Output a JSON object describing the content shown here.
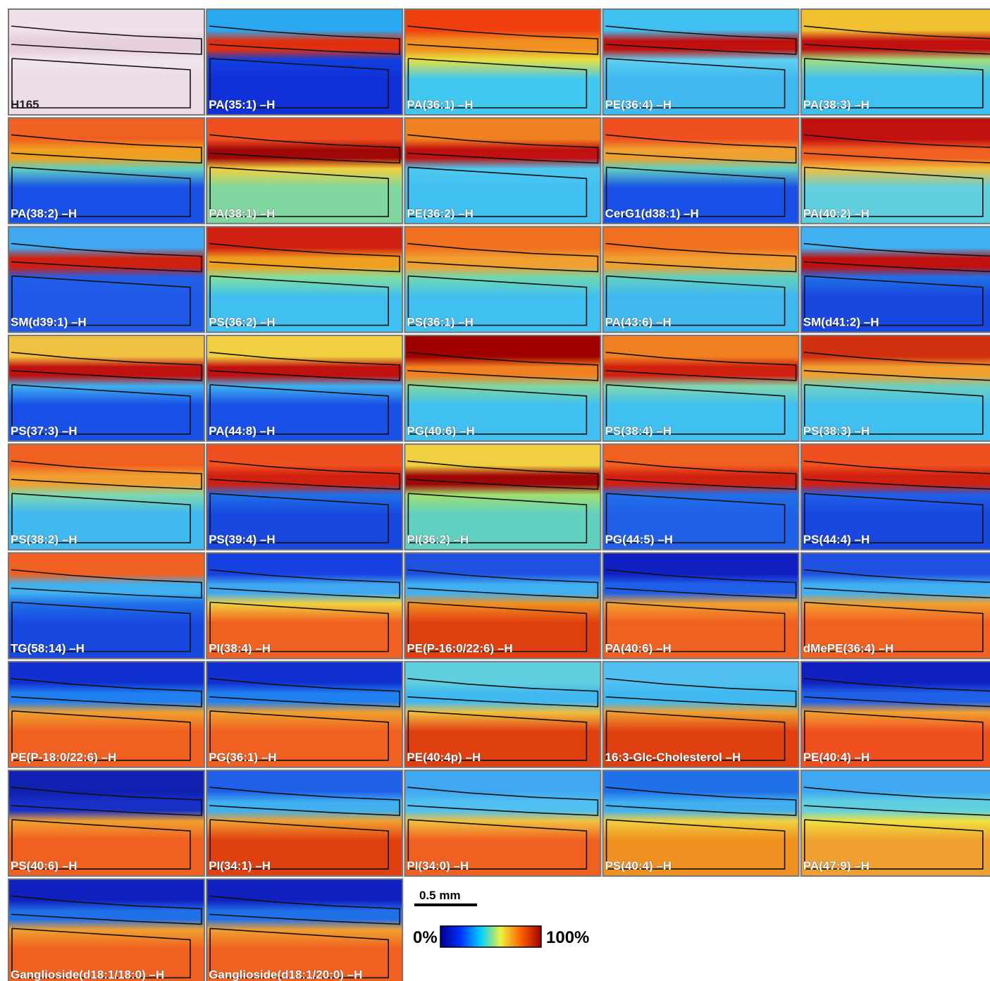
{
  "panels": [
    {
      "label": "H165",
      "colors": [
        "#efe0ea",
        "#e6cfdc",
        "#f2e6ee",
        "#ecdce6"
      ]
    },
    {
      "label": "PA(35:1) –H",
      "colors": [
        "#2aa8f0",
        "#e03010",
        "#1040e0",
        "#1030d8"
      ]
    },
    {
      "label": "PA(36:1) –H",
      "colors": [
        "#f04010",
        "#f09020",
        "#e8e040",
        "#40c8f0"
      ]
    },
    {
      "label": "PE(36:4) –H",
      "colors": [
        "#40c0f0",
        "#c01010",
        "#60d0f0",
        "#40b8f0"
      ]
    },
    {
      "label": "PA(38:3) –H",
      "colors": [
        "#f0c030",
        "#c01010",
        "#a0e080",
        "#40c0f0"
      ]
    },
    {
      "label": "PA(38:2) –H",
      "colors": [
        "#f06020",
        "#f0a020",
        "#60d0c0",
        "#1850e8"
      ]
    },
    {
      "label": "PA(38:1) –H",
      "colors": [
        "#f05020",
        "#a00808",
        "#f0d040",
        "#80d8a0"
      ]
    },
    {
      "label": "PE(36:2) –H",
      "colors": [
        "#f08020",
        "#c01010",
        "#50c8f0",
        "#40c0f0"
      ]
    },
    {
      "label": "CerG1(d38:1) –H",
      "colors": [
        "#f05020",
        "#f0a030",
        "#60d0c0",
        "#1850e8"
      ]
    },
    {
      "label": "PA(40:2) –H",
      "colors": [
        "#c01010",
        "#f06020",
        "#f0c040",
        "#60d0e0"
      ]
    },
    {
      "label": "SM(d39:1) –H",
      "colors": [
        "#40a8f0",
        "#d02010",
        "#2060e8",
        "#2058e8"
      ]
    },
    {
      "label": "PS(36:2) –H",
      "colors": [
        "#d02010",
        "#f0a020",
        "#80e0a0",
        "#40c0f0"
      ]
    },
    {
      "label": "PS(36:1) –H",
      "colors": [
        "#f07020",
        "#f0a030",
        "#70d8b0",
        "#40c0f0"
      ]
    },
    {
      "label": "PA(43:6) –H",
      "colors": [
        "#f07020",
        "#f0a030",
        "#60d0c0",
        "#40b8f0"
      ]
    },
    {
      "label": "SM(d41:2) –H",
      "colors": [
        "#40b0f0",
        "#c01010",
        "#2070e8",
        "#1848e0"
      ]
    },
    {
      "label": "PS(37:3) –H",
      "colors": [
        "#f0c040",
        "#c01010",
        "#40b0f0",
        "#1850e8"
      ]
    },
    {
      "label": "PA(44:8) –H",
      "colors": [
        "#f0d040",
        "#c01010",
        "#40b0f0",
        "#1850e8"
      ]
    },
    {
      "label": "PG(40:6) –H",
      "colors": [
        "#a00000",
        "#f08020",
        "#80d8a0",
        "#40c0f0"
      ]
    },
    {
      "label": "PS(38:4) –H",
      "colors": [
        "#f08020",
        "#d02010",
        "#80d8b0",
        "#40c0f0"
      ]
    },
    {
      "label": "PS(38:3) –H",
      "colors": [
        "#d03010",
        "#f0a030",
        "#70d0c0",
        "#40c0f0"
      ]
    },
    {
      "label": "PS(38:2) –H",
      "colors": [
        "#f06020",
        "#f0a030",
        "#80d8b0",
        "#40b8f0"
      ]
    },
    {
      "label": "PS(39:4) –H",
      "colors": [
        "#f05020",
        "#d02010",
        "#2070e8",
        "#1848e0"
      ]
    },
    {
      "label": "PI(36:2) –H",
      "colors": [
        "#f0d040",
        "#a00808",
        "#a0e070",
        "#60d0c0"
      ]
    },
    {
      "label": "PG(44:5) –H",
      "colors": [
        "#f06020",
        "#d02010",
        "#2070e8",
        "#2060e8"
      ]
    },
    {
      "label": "PS(44:4) –H",
      "colors": [
        "#f05020",
        "#d02010",
        "#2060e8",
        "#1848e0"
      ]
    },
    {
      "label": "TG(58:14) –H",
      "colors": [
        "#f06020",
        "#40b0f0",
        "#2070e8",
        "#1848e0"
      ]
    },
    {
      "label": "PI(38:4) –H",
      "colors": [
        "#1840e0",
        "#40a8f0",
        "#f0d040",
        "#f06020"
      ]
    },
    {
      "label": "PE(P-16:0/22:6) –H",
      "colors": [
        "#2050e0",
        "#40b0f0",
        "#f09020",
        "#e04010"
      ]
    },
    {
      "label": "PA(40:6) –H",
      "colors": [
        "#1020c0",
        "#2060e8",
        "#f0a030",
        "#f06020"
      ]
    },
    {
      "label": "dMePE(36:4) –H",
      "colors": [
        "#2050e0",
        "#40b0f0",
        "#f0a030",
        "#f06020"
      ]
    },
    {
      "label": "PE(P-18:0/22:6) –H",
      "colors": [
        "#1030d0",
        "#2080f0",
        "#f0a030",
        "#f06020"
      ]
    },
    {
      "label": "PG(36:1) –H",
      "colors": [
        "#1030d0",
        "#2080f0",
        "#f0a030",
        "#f06020"
      ]
    },
    {
      "label": "PE(40:4p) –H",
      "colors": [
        "#60d0e0",
        "#40b8f0",
        "#f0c040",
        "#e04010"
      ]
    },
    {
      "label": "16:3-Glc-Cholesterol –H",
      "colors": [
        "#50c0f0",
        "#40b8f0",
        "#f0a030",
        "#e04010"
      ]
    },
    {
      "label": "PE(40:4) –H",
      "colors": [
        "#1020c0",
        "#2060e8",
        "#f0a030",
        "#f05020"
      ]
    },
    {
      "label": "PS(40:6) –H",
      "colors": [
        "#1020b0",
        "#1830c8",
        "#f0a030",
        "#f06020"
      ]
    },
    {
      "label": "PI(34:1) –H",
      "colors": [
        "#2060e8",
        "#40b0f0",
        "#f0a030",
        "#e04010"
      ]
    },
    {
      "label": "PI(34:0) –H",
      "colors": [
        "#40a8f0",
        "#50c0f0",
        "#f0c040",
        "#f06020"
      ]
    },
    {
      "label": "PS(40:4) –H",
      "colors": [
        "#2070e8",
        "#40b0f0",
        "#f0d040",
        "#f09020"
      ]
    },
    {
      "label": "PA(47:9) –H",
      "colors": [
        "#40a8f0",
        "#60d0e0",
        "#f0e040",
        "#f0a030"
      ]
    },
    {
      "label": "Ganglioside(d18:1/18:0) –H",
      "colors": [
        "#1020c0",
        "#2070e8",
        "#f0a030",
        "#f06020"
      ]
    },
    {
      "label": "Ganglioside(d18:1/20:0) –H",
      "colors": [
        "#1020c0",
        "#2070e8",
        "#f0a030",
        "#f06020"
      ]
    }
  ],
  "scale_bar": "0.5 mm",
  "colorbar": {
    "min_label": "0%",
    "max_label": "100%",
    "colors": [
      "#000090",
      "#0030ff",
      "#00d0ff",
      "#f0f040",
      "#ff6000",
      "#a00000"
    ]
  }
}
